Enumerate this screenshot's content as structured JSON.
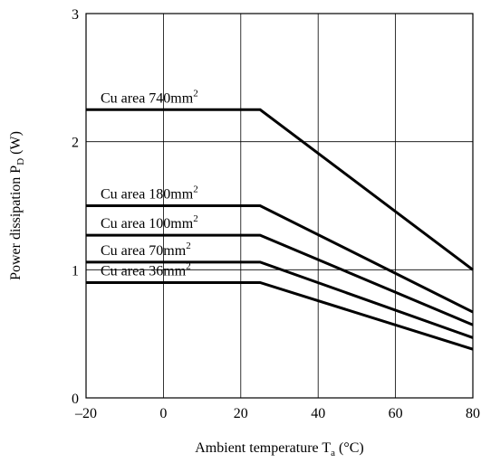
{
  "chart_data": {
    "type": "line",
    "xlabel": {
      "main": "Ambient temperature T",
      "sub": "a",
      "unit": " (°C)"
    },
    "ylabel": {
      "main": "Power dissipation P",
      "sub": "D",
      "unit": " (W)"
    },
    "xlim": [
      -20,
      80
    ],
    "ylim": [
      0,
      3
    ],
    "xticks": [
      -20,
      0,
      20,
      40,
      60,
      80
    ],
    "yticks": [
      0,
      1,
      2,
      3
    ],
    "xtick_labels": [
      "–20",
      "0",
      "20",
      "40",
      "60",
      "80"
    ],
    "ytick_labels": [
      "0",
      "1",
      "2",
      "3"
    ],
    "grid": true,
    "series": [
      {
        "name": "Cu area 740mm",
        "name_sup": "2",
        "x": [
          -20,
          25,
          80
        ],
        "y": [
          2.25,
          2.25,
          1.0
        ]
      },
      {
        "name": "Cu area 180mm",
        "name_sup": "2",
        "x": [
          -20,
          25,
          80
        ],
        "y": [
          1.5,
          1.5,
          0.67
        ]
      },
      {
        "name": "Cu area 100mm",
        "name_sup": "2",
        "x": [
          -20,
          25,
          80
        ],
        "y": [
          1.27,
          1.27,
          0.57
        ]
      },
      {
        "name": "Cu area 70mm",
        "name_sup": "2",
        "x": [
          -20,
          25,
          80
        ],
        "y": [
          1.06,
          1.06,
          0.47
        ]
      },
      {
        "name": "Cu area 36mm",
        "name_sup": "2",
        "x": [
          -20,
          25,
          80
        ],
        "y": [
          0.9,
          0.9,
          0.38
        ]
      }
    ]
  }
}
